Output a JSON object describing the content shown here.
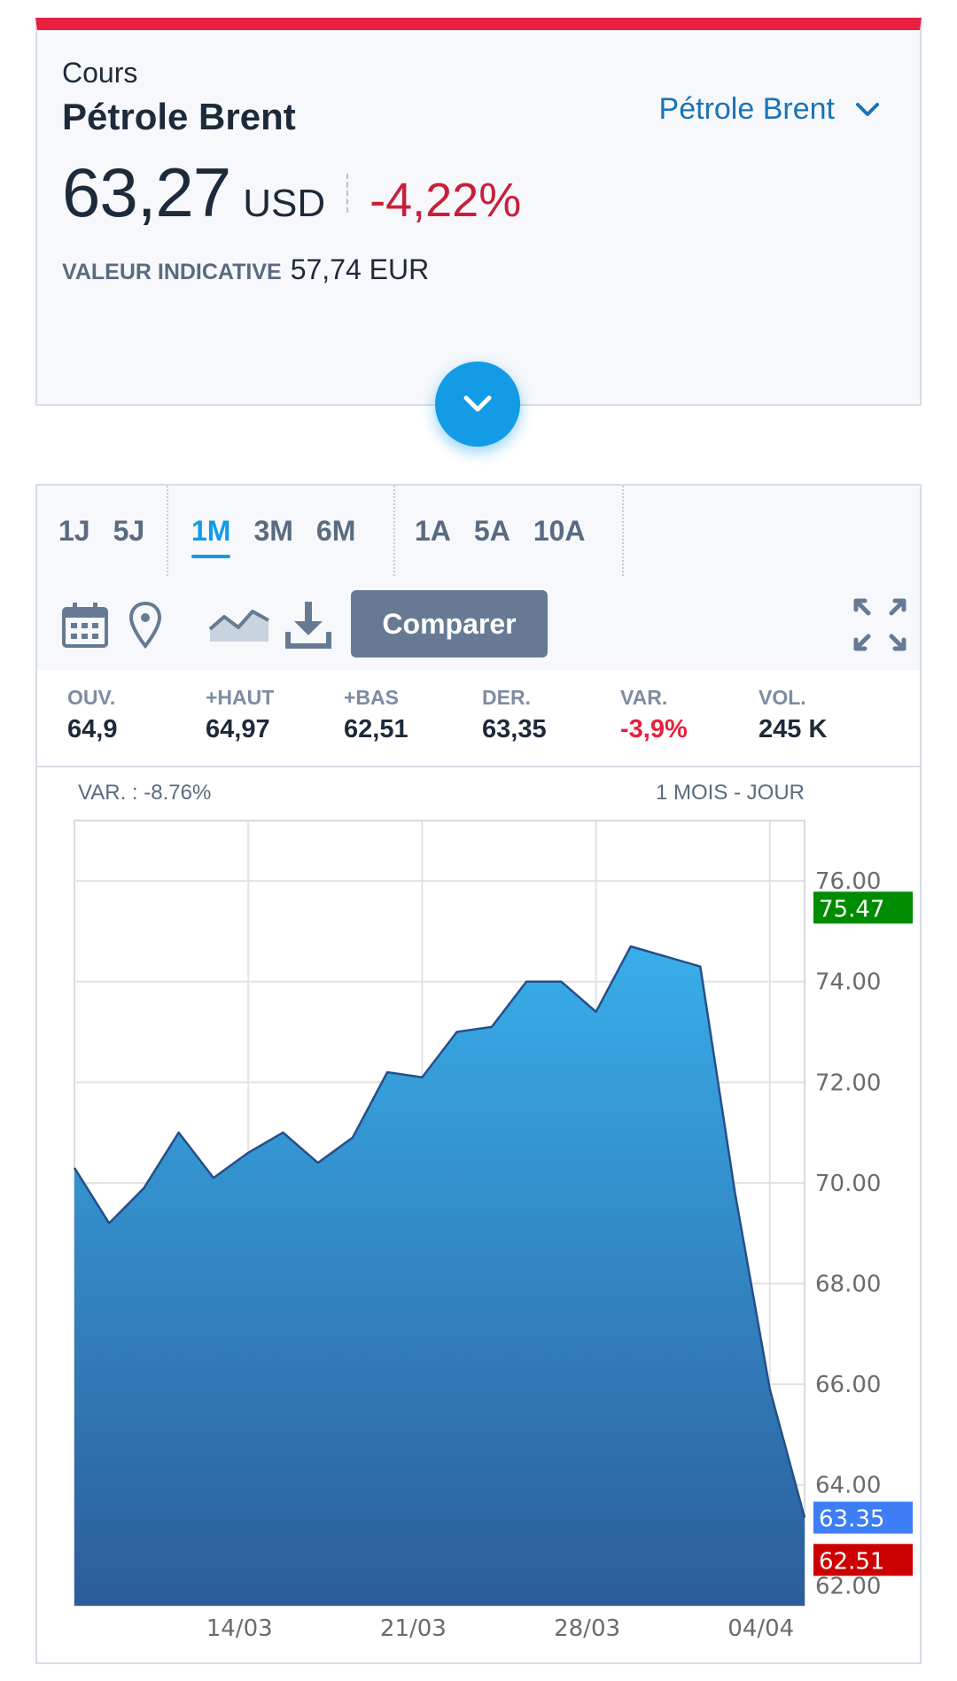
{
  "quote": {
    "label": "Cours",
    "title": "Pétrole Brent",
    "selector_label": "Pétrole Brent",
    "price": "63,27",
    "currency": "USD",
    "change": "-4,22%",
    "indicative_label": "VALEUR INDICATIVE",
    "indicative_value": "57,74 EUR"
  },
  "periods": {
    "groups": [
      [
        "1J",
        "5J"
      ],
      [
        "1M",
        "3M",
        "6M"
      ],
      [
        "1A",
        "5A",
        "10A"
      ]
    ],
    "active": "1M"
  },
  "toolbar": {
    "icons": [
      "calendar-icon",
      "map-pin-icon",
      "area-chart-icon",
      "download-icon",
      "fullscreen-icon"
    ],
    "compare_label": "Comparer"
  },
  "stats": [
    {
      "label": "OUV.",
      "value": "64,9"
    },
    {
      "label": "+HAUT",
      "value": "64,97"
    },
    {
      "label": "+BAS",
      "value": "62,51"
    },
    {
      "label": "DER.",
      "value": "63,35"
    },
    {
      "label": "VAR.",
      "value": "-3,9%"
    },
    {
      "label": "VOL.",
      "value": "245 K"
    }
  ],
  "colors": {
    "brand_red": "#e8203f",
    "accent_blue": "#139be6",
    "negative": "#c8203a",
    "tag_high": "#008c00",
    "tag_last": "#3d7df6",
    "tag_low": "#cc0000"
  },
  "chart_data": {
    "type": "area",
    "header_left": "VAR. : -8.76%",
    "header_right": "1 MOIS - JOUR",
    "y_ticks": [
      "76.00",
      "74.00",
      "72.00",
      "70.00",
      "68.00",
      "66.00",
      "64.00",
      "62.00"
    ],
    "ylim": [
      61.6,
      77.2
    ],
    "x_tick_labels": [
      "14/03",
      "21/03",
      "28/03",
      "04/04"
    ],
    "x_tick_index": [
      5,
      10,
      15,
      20
    ],
    "values": [
      70.3,
      69.2,
      69.9,
      71.0,
      70.1,
      70.6,
      71.0,
      70.4,
      70.9,
      72.2,
      72.1,
      73.0,
      73.1,
      74.0,
      74.0,
      73.4,
      74.7,
      74.5,
      74.3,
      69.8,
      65.9,
      63.35
    ],
    "tags": [
      {
        "label": "75.47",
        "value": 75.47,
        "color": "#008c00"
      },
      {
        "label": "63.35",
        "value": 63.35,
        "color": "#3d7df6"
      },
      {
        "label": "62.51",
        "value": 62.51,
        "color": "#cc0000"
      }
    ],
    "grid": true
  }
}
